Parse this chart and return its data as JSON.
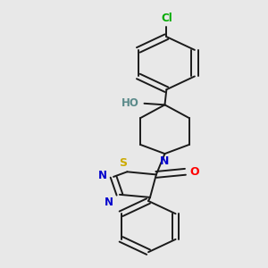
{
  "background_color": "#e8e8e8",
  "bond_color": "#1a1a1a",
  "atom_colors": {
    "N": "#0000cc",
    "O": "#ff0000",
    "S": "#ccaa00",
    "Cl": "#00aa00",
    "H": "#5a8a8a"
  },
  "figsize": [
    3.0,
    3.0
  ],
  "dpi": 100
}
